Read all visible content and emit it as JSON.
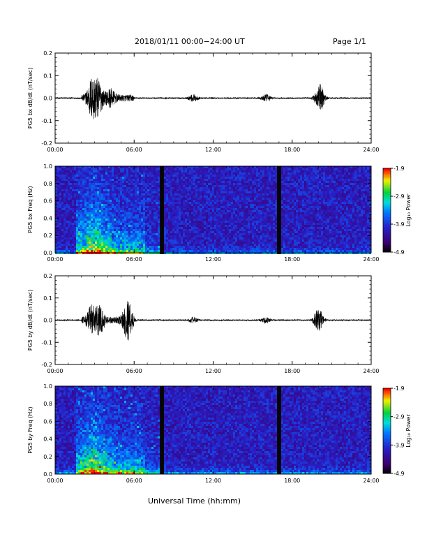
{
  "header": {
    "title": "2018/01/11  00:00−24:00 UT",
    "page": "Page 1/1"
  },
  "xlabel": "Universal Time (hh:mm)",
  "colorbar": {
    "label": "Log₁₀ Power",
    "ticks": [
      "-1.9",
      "-2.9",
      "-3.9",
      "-4.9"
    ]
  },
  "chart_data": [
    {
      "type": "line",
      "ylabel": "PG5 bx dB/dt (nT/sec)",
      "x_ticks": [
        "00:00",
        "06:00",
        "12:00",
        "18:00",
        "24:00"
      ],
      "y_ticks": [
        "0.2",
        "0.1",
        "0.0",
        "-0.1",
        "-0.2"
      ],
      "xlim": [
        0,
        24
      ],
      "ylim": [
        -0.2,
        0.2
      ],
      "bursts": [
        {
          "t": 2.8,
          "amp": 0.08
        },
        {
          "t": 3.3,
          "amp": 0.06
        },
        {
          "t": 4.2,
          "amp": 0.03
        },
        {
          "t": 10.5,
          "amp": 0.015
        },
        {
          "t": 16.0,
          "amp": 0.015
        },
        {
          "t": 20.1,
          "amp": 0.06
        }
      ]
    },
    {
      "type": "heatmap",
      "ylabel": "PG5 bx Freq (Hz)",
      "x_ticks": [
        "00:00",
        "06:00",
        "12:00",
        "18:00",
        "24:00"
      ],
      "y_ticks": [
        "1.0",
        "0.8",
        "0.6",
        "0.4",
        "0.2",
        "0.0"
      ],
      "xlim": [
        0,
        24
      ],
      "ylim": [
        0,
        1
      ],
      "zlim": [
        -4.9,
        -1.9
      ],
      "gaps_hours": [
        8.0,
        16.8
      ]
    },
    {
      "type": "line",
      "ylabel": "PG5 by dB/dt (nT/sec)",
      "x_ticks": [
        "00:00",
        "06:00",
        "12:00",
        "18:00",
        "24:00"
      ],
      "y_ticks": [
        "0.2",
        "0.1",
        "0.0",
        "-0.1",
        "-0.2"
      ],
      "xlim": [
        0,
        24
      ],
      "ylim": [
        -0.2,
        0.2
      ],
      "bursts": [
        {
          "t": 2.8,
          "amp": 0.06
        },
        {
          "t": 3.4,
          "amp": 0.05
        },
        {
          "t": 5.5,
          "amp": 0.08
        },
        {
          "t": 10.5,
          "amp": 0.012
        },
        {
          "t": 16.0,
          "amp": 0.012
        },
        {
          "t": 20.0,
          "amp": 0.05
        }
      ]
    },
    {
      "type": "heatmap",
      "ylabel": "PG5 by Freq (Hz)",
      "x_ticks": [
        "00:00",
        "06:00",
        "12:00",
        "18:00",
        "24:00"
      ],
      "y_ticks": [
        "1.0",
        "0.8",
        "0.6",
        "0.4",
        "0.2",
        "0.0"
      ],
      "xlim": [
        0,
        24
      ],
      "ylim": [
        0,
        1
      ],
      "zlim": [
        -4.9,
        -1.9
      ],
      "gaps_hours": [
        8.0,
        16.8
      ]
    }
  ]
}
